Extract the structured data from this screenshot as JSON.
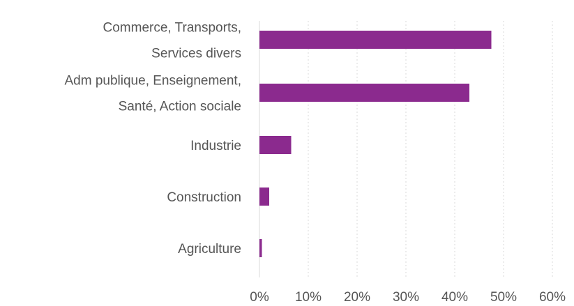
{
  "chart_data": {
    "type": "bar",
    "orientation": "horizontal",
    "title": "",
    "xlabel": "",
    "ylabel": "",
    "categories": [
      [
        "Commerce, Transports,",
        "Services divers"
      ],
      [
        "Adm publique, Enseignement,",
        "Santé, Action sociale"
      ],
      [
        "Industrie"
      ],
      [
        "Construction"
      ],
      [
        "Agriculture"
      ]
    ],
    "values": [
      47.5,
      43,
      6.5,
      2,
      0.5
    ],
    "xlim": [
      0,
      60
    ],
    "x_ticks": [
      "0%",
      "10%",
      "20%",
      "30%",
      "40%",
      "50%",
      "60%"
    ],
    "grid": "vertical",
    "bar_color": "#8b2a8e",
    "legend": "none"
  }
}
